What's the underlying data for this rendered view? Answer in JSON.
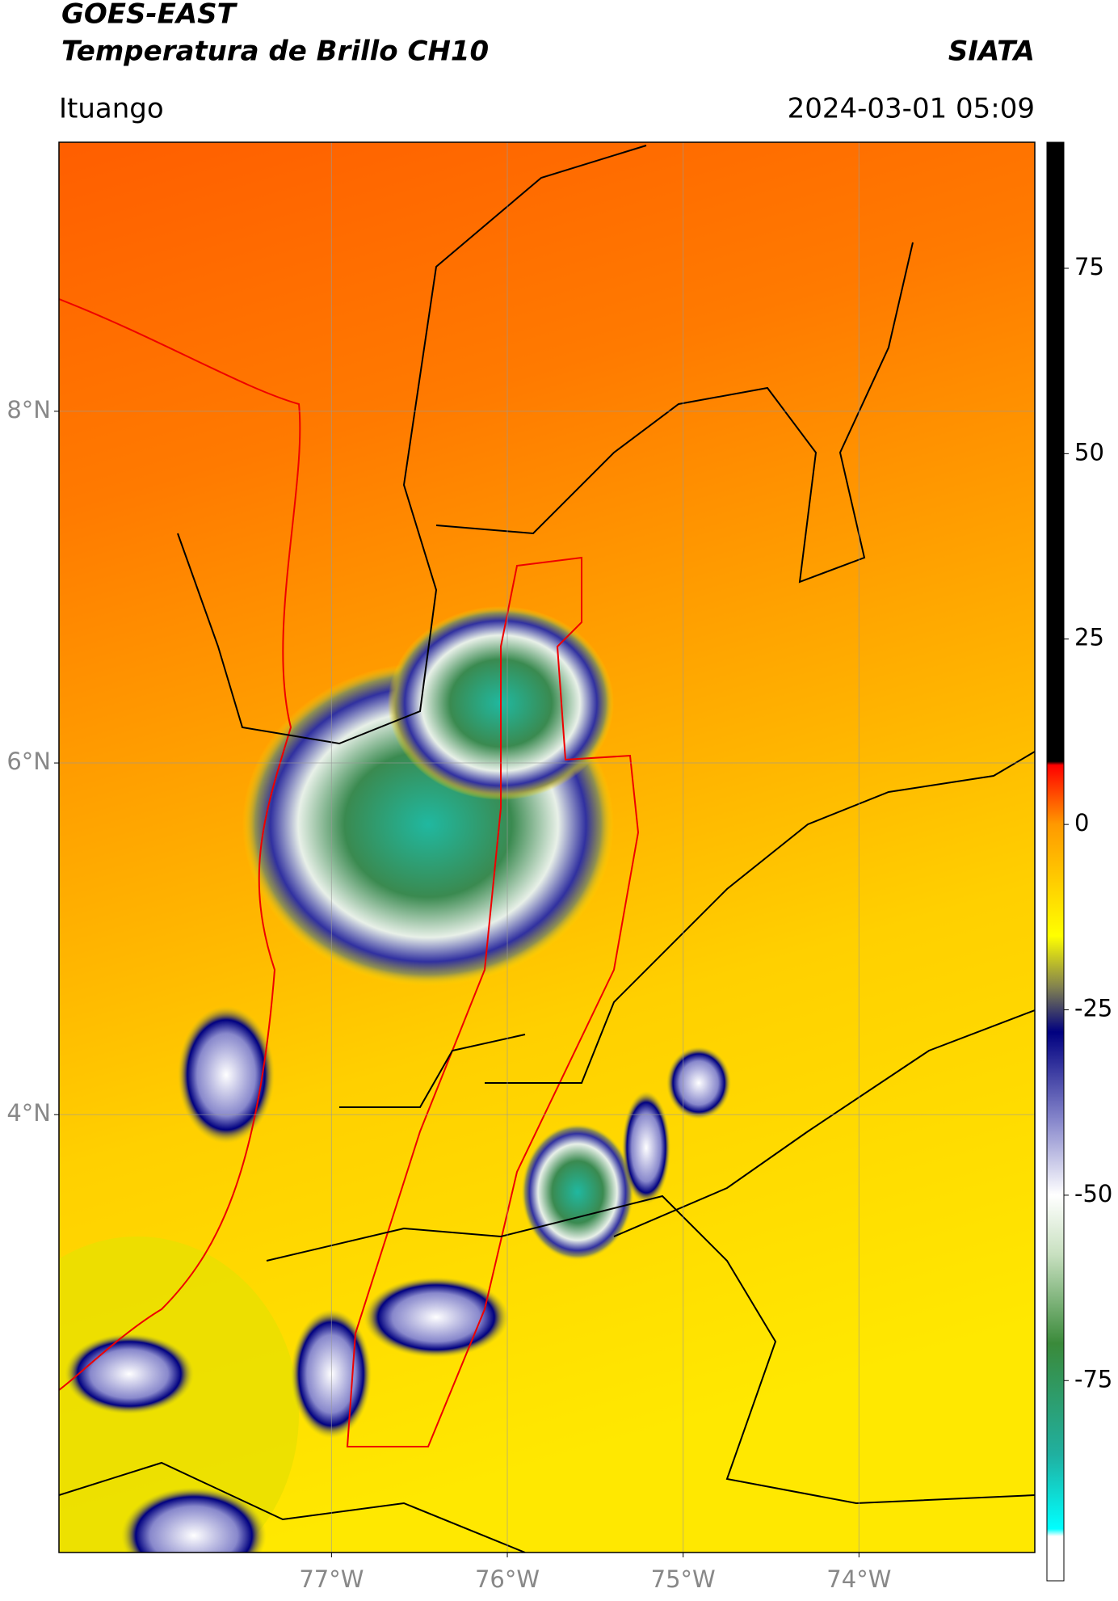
{
  "header": {
    "title": "GOES-EAST",
    "subtitle": "Temperatura de Brillo CH10",
    "agency": "SIATA",
    "location": "Ituango",
    "datetime": "2024-03-01 05:09"
  },
  "map": {
    "xlim": [
      -78.55,
      -73.0
    ],
    "ylim": [
      1.51,
      9.53
    ],
    "xticks": [
      {
        "value": -77,
        "label": "77°W"
      },
      {
        "value": -76,
        "label": "76°W"
      },
      {
        "value": -75,
        "label": "75°W"
      },
      {
        "value": -74,
        "label": "74°W"
      }
    ],
    "yticks": [
      {
        "value": 8,
        "label": "8°N"
      },
      {
        "value": 6,
        "label": "6°N"
      },
      {
        "value": 4,
        "label": "4°N"
      }
    ],
    "grid": true
  },
  "colorbar": {
    "clim": [
      -102,
      92
    ],
    "ticks": [
      75,
      50,
      25,
      0,
      -25,
      -50,
      -75
    ],
    "stops": [
      {
        "value": -102,
        "color": "#ffffff"
      },
      {
        "value": -96,
        "color": "#ffffff"
      },
      {
        "value": -95,
        "color": "#00ffff"
      },
      {
        "value": -85,
        "color": "#20b0a0"
      },
      {
        "value": -70,
        "color": "#3a8a3a"
      },
      {
        "value": -58,
        "color": "#c8e0c0"
      },
      {
        "value": -50,
        "color": "#ffffff"
      },
      {
        "value": -40,
        "color": "#8888cc"
      },
      {
        "value": -28,
        "color": "#000080"
      },
      {
        "value": -22,
        "color": "#808050"
      },
      {
        "value": -15,
        "color": "#ffff00"
      },
      {
        "value": 0,
        "color": "#ff9900"
      },
      {
        "value": 8,
        "color": "#ff0000"
      },
      {
        "value": 8.5,
        "color": "#000000"
      },
      {
        "value": 92,
        "color": "#000000"
      }
    ]
  }
}
